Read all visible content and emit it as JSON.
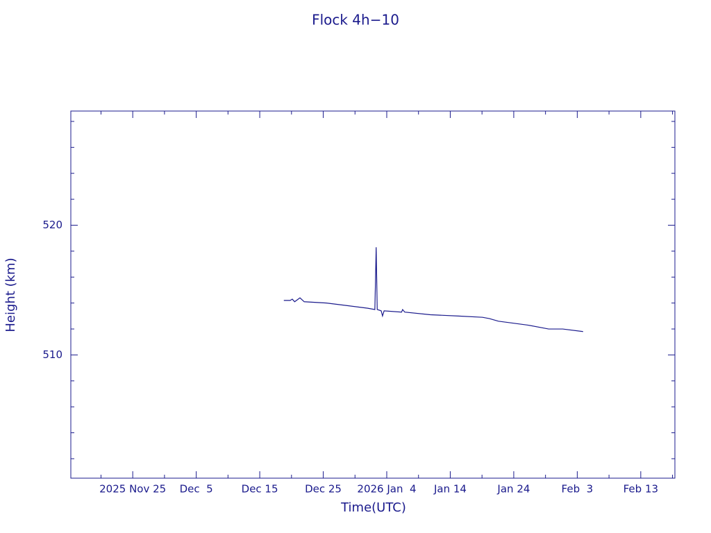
{
  "chart_data": {
    "type": "line",
    "title": "Flock 4h−10",
    "x_label": "Time(UTC)",
    "y_label": "Height (km)",
    "color": "#1a1a8c",
    "x": [
      "2025-12-18T19:00Z",
      "2025-12-19T19:00Z",
      "2025-12-20T03:00Z",
      "2025-12-20T12:00Z",
      "2025-12-21T08:00Z",
      "2025-12-22T00:00Z",
      "2025-12-25T12:00Z",
      "2025-12-28T19:00Z",
      "2026-01-01T00:00Z",
      "2026-01-02T03:00Z",
      "2026-01-02T05:00Z",
      "2026-01-02T08:00Z",
      "2026-01-02T12:00Z",
      "2026-01-03T03:00Z",
      "2026-01-03T08:00Z",
      "2026-01-03T14:00Z",
      "2026-01-06T08:00Z",
      "2026-01-06T12:00Z",
      "2026-01-06T20:00Z",
      "2026-01-10T21:00Z",
      "2026-01-15T07:00Z",
      "2026-01-19T02:00Z",
      "2026-01-20T04:00Z",
      "2026-01-21T14:00Z",
      "2026-01-26T05:00Z",
      "2026-01-29T12:00Z",
      "2026-01-31T17:00Z",
      "2026-02-03T22:00Z"
    ],
    "series": [
      {
        "name": "Height",
        "color": "#1a1a8c",
        "values": [
          514.2,
          514.2,
          514.3,
          514.1,
          514.4,
          514.1,
          514.0,
          513.8,
          513.6,
          513.5,
          515.3,
          518.3,
          513.5,
          513.4,
          513.0,
          513.4,
          513.3,
          513.5,
          513.3,
          513.1,
          513.0,
          512.9,
          512.8,
          512.6,
          512.3,
          512.0,
          512.0,
          511.8
        ]
      }
    ],
    "xlim": [
      "2025-11-15T06:00Z",
      "2026-02-18T09:00Z"
    ],
    "xticks": [
      {
        "value": "2025-11-25T00:00Z",
        "label": "2025 Nov 25"
      },
      {
        "value": "2025-12-05T00:00Z",
        "label": "Dec  5"
      },
      {
        "value": "2025-12-15T00:00Z",
        "label": "Dec 15"
      },
      {
        "value": "2025-12-25T00:00Z",
        "label": "Dec 25"
      },
      {
        "value": "2026-01-04T00:00Z",
        "label": "2026 Jan  4"
      },
      {
        "value": "2026-01-14T00:00Z",
        "label": "Jan 14"
      },
      {
        "value": "2026-01-24T00:00Z",
        "label": "Jan 24"
      },
      {
        "value": "2026-02-03T00:00Z",
        "label": "Feb  3"
      },
      {
        "value": "2026-02-13T00:00Z",
        "label": "Feb 13"
      }
    ],
    "x_minor_ticks": [
      "2025-11-20T00:00Z",
      "2025-11-30T00:00Z",
      "2025-12-10T00:00Z",
      "2025-12-20T00:00Z",
      "2025-12-30T00:00Z",
      "2026-01-09T00:00Z",
      "2026-01-19T00:00Z",
      "2026-01-29T00:00Z",
      "2026-02-08T00:00Z",
      "2026-02-18T00:00Z"
    ],
    "ylim": [
      500.5,
      528.8
    ],
    "yticks": [
      510,
      520
    ],
    "y_minor_ticks": [
      502,
      504,
      506,
      508,
      512,
      514,
      516,
      518,
      522,
      524,
      526,
      528
    ]
  }
}
